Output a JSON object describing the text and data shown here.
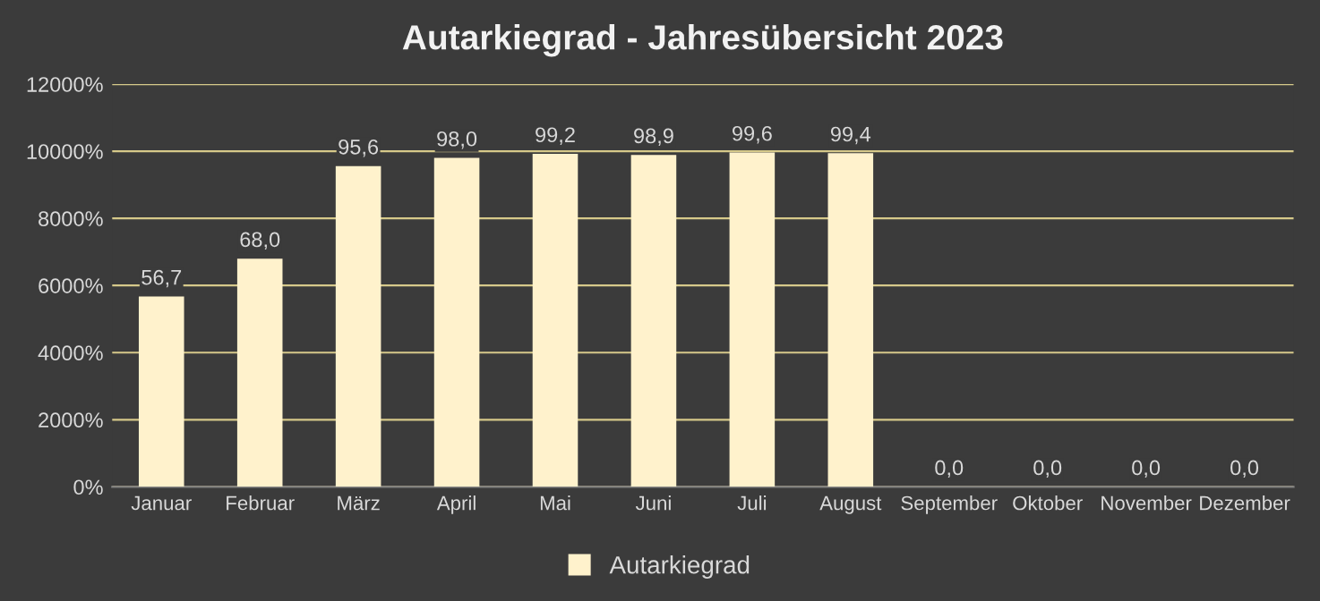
{
  "chart_data": {
    "type": "bar",
    "title": "Autarkiegrad - Jahresübersicht 2023",
    "categories": [
      "Januar",
      "Februar",
      "März",
      "April",
      "Mai",
      "Juni",
      "Juli",
      "August",
      "September",
      "Oktober",
      "November",
      "Dezember"
    ],
    "series": [
      {
        "name": "Autarkiegrad",
        "color": "#fff2cc",
        "values": [
          56.7,
          68.0,
          95.6,
          98.0,
          99.2,
          98.9,
          99.6,
          99.4,
          0.0,
          0.0,
          0.0,
          0.0
        ],
        "value_labels": [
          "56,7",
          "68,0",
          "95,6",
          "98,0",
          "99,2",
          "98,9",
          "99,6",
          "99,4",
          "0,0",
          "0,0",
          "0,0",
          "0,0"
        ]
      }
    ],
    "ylim": [
      0,
      120
    ],
    "yticks": [
      {
        "value": 0,
        "label": "0%"
      },
      {
        "value": 20,
        "label": "2000%"
      },
      {
        "value": 40,
        "label": "4000%"
      },
      {
        "value": 60,
        "label": "6000%"
      },
      {
        "value": 80,
        "label": "8000%"
      },
      {
        "value": 100,
        "label": "10000%"
      },
      {
        "value": 120,
        "label": "12000%"
      }
    ],
    "grid": "y",
    "legend": "bottom"
  }
}
